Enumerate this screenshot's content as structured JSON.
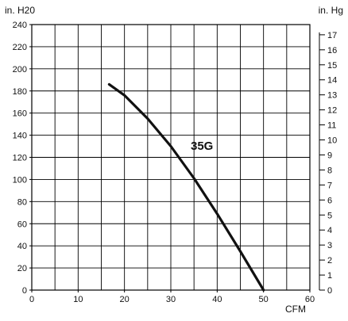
{
  "chart_data": {
    "type": "line",
    "xlabel": "CFM",
    "ylabel_left": "in. H20",
    "ylabel_right": "in. Hg",
    "xlim": [
      0,
      60
    ],
    "ylim": [
      0,
      240
    ],
    "ylim_right": [
      0,
      17.68
    ],
    "x_ticks": [
      0,
      10,
      20,
      30,
      40,
      50,
      60
    ],
    "y_ticks": [
      0,
      20,
      40,
      60,
      80,
      100,
      120,
      140,
      160,
      180,
      200,
      220,
      240
    ],
    "y_right_ticks": [
      0,
      1,
      2,
      3,
      4,
      5,
      6,
      7,
      8,
      9,
      10,
      11,
      12,
      13,
      14,
      15,
      16,
      17
    ],
    "x_minor_step": 5,
    "grid": true,
    "series": [
      {
        "name": "35G",
        "x": [
          16.7,
          20,
          25,
          30,
          35,
          40,
          45,
          50
        ],
        "y": [
          186,
          176,
          155,
          130,
          101,
          69,
          35,
          0
        ]
      }
    ],
    "colors": {
      "curve": "#111111",
      "grid": "#000000"
    }
  }
}
